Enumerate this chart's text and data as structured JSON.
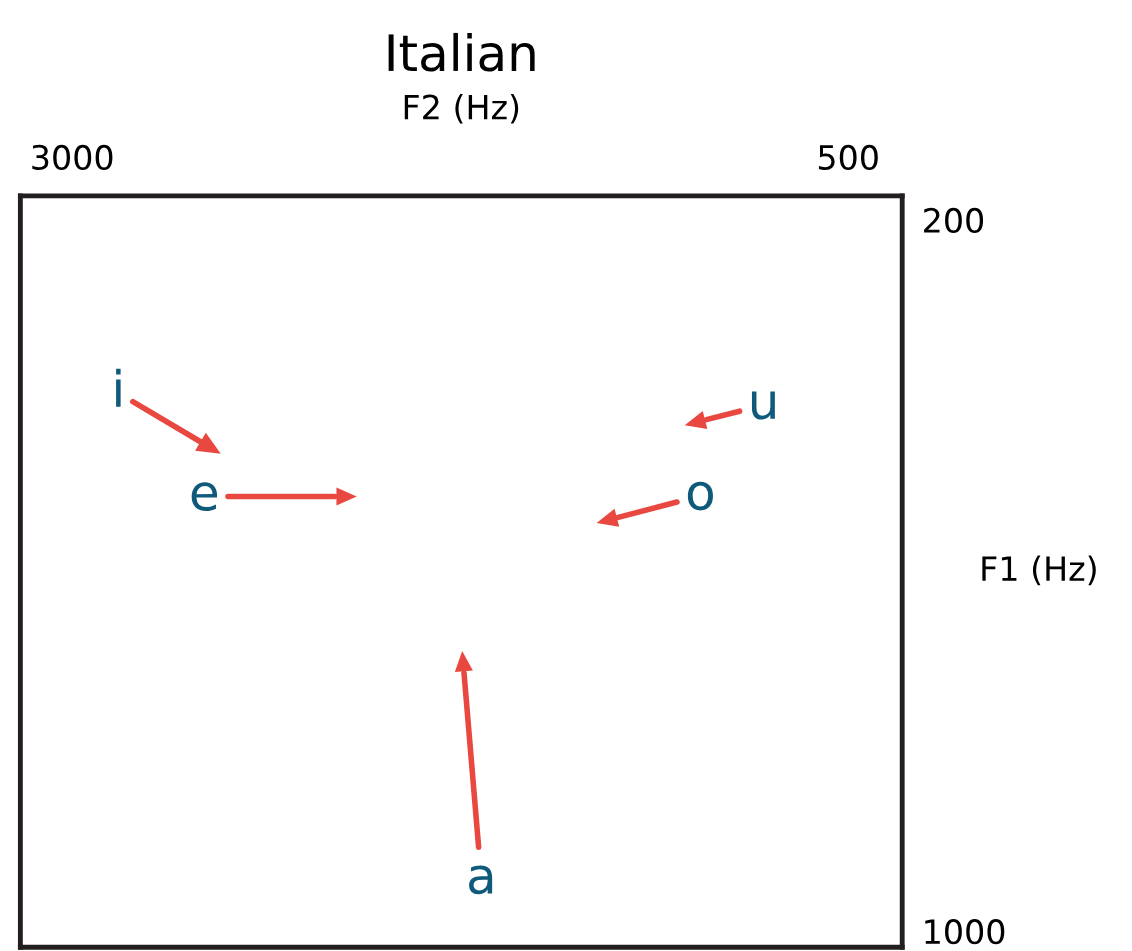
{
  "chart_data": {
    "type": "scatter",
    "title": "Italian",
    "xlabel": "F2 (Hz)",
    "ylabel": "F1 (Hz)",
    "xlim": [
      3167,
      326
    ],
    "ylim": [
      1018,
      173
    ],
    "xticks": [
      3000,
      500
    ],
    "yticks": [
      200,
      1000
    ],
    "grid": false,
    "marker": "triangle",
    "series": [
      {
        "color": "#e8483f",
        "x": [
          2565,
          2127,
          1740,
          1267,
          983
        ],
        "values": [
          454,
          511,
          700,
          537,
          427
        ]
      }
    ],
    "annotations": [
      {
        "text": "i",
        "x": 2565,
        "y": 454
      },
      {
        "text": "e",
        "x": 2127,
        "y": 511
      },
      {
        "text": "a",
        "x": 1740,
        "y": 700
      },
      {
        "text": "o",
        "x": 1267,
        "y": 537
      },
      {
        "text": "u",
        "x": 983,
        "y": 427
      }
    ]
  }
}
